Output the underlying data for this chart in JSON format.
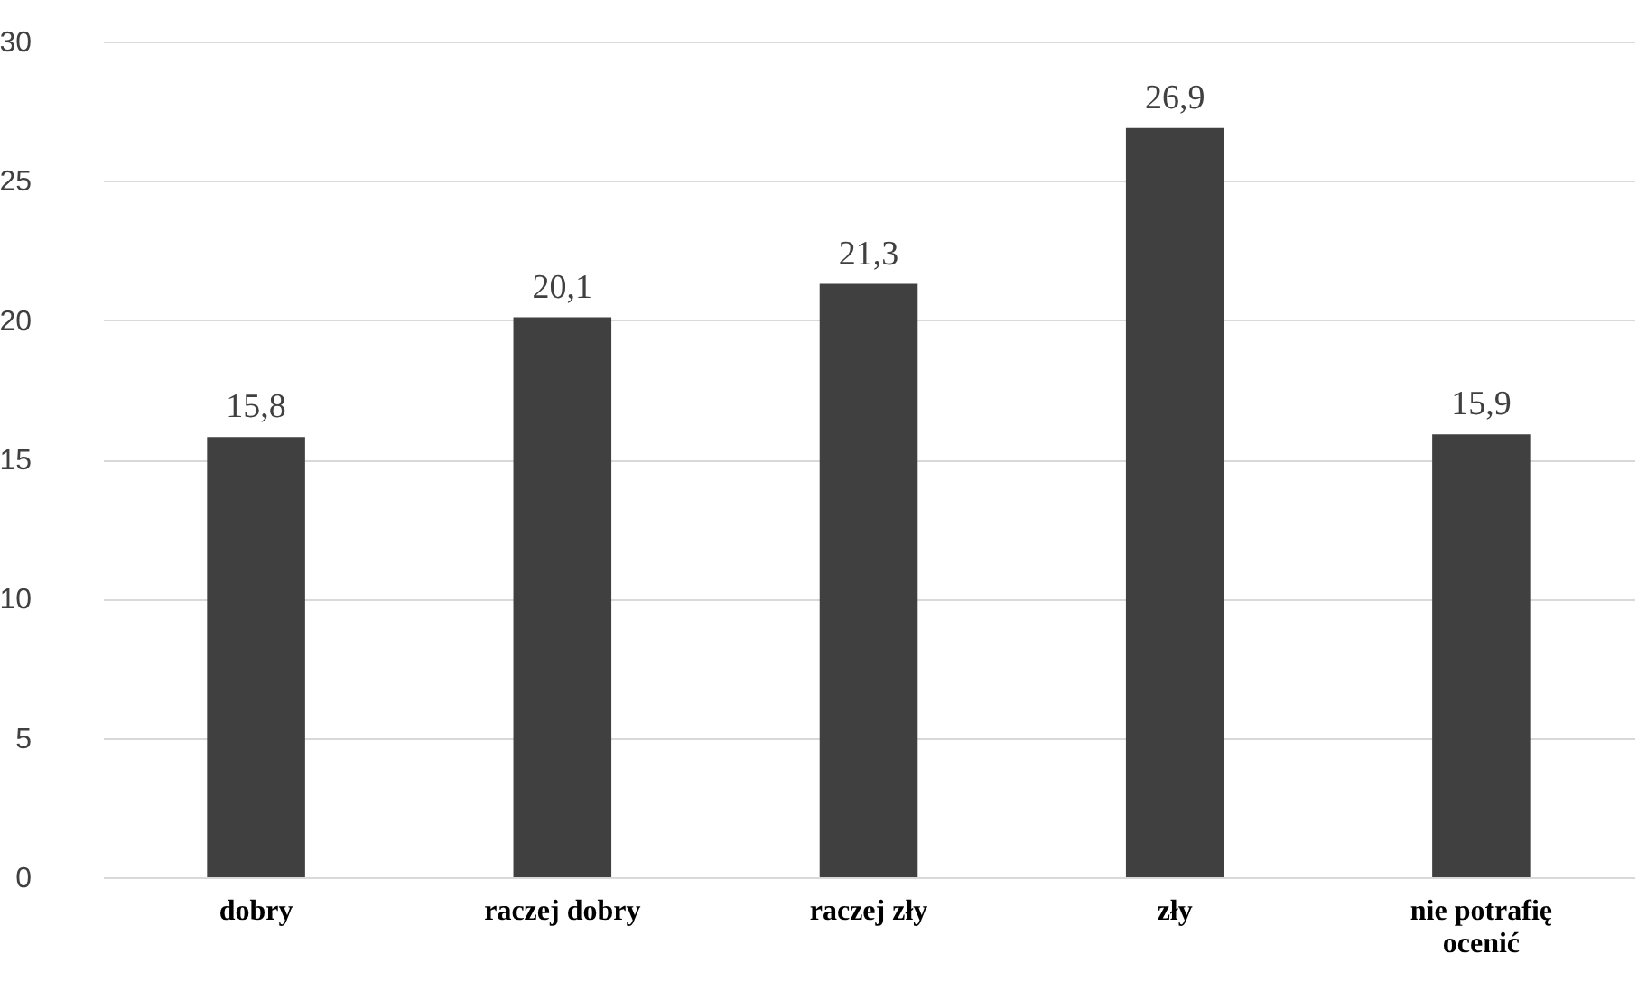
{
  "chart_data": {
    "type": "bar",
    "categories": [
      "dobry",
      "raczej dobry",
      "raczej zły",
      "zły",
      "nie potrafię ocenić"
    ],
    "values": [
      15.8,
      20.1,
      21.3,
      26.9,
      15.9
    ],
    "value_labels": [
      "15,8",
      "20,1",
      "21,3",
      "26,9",
      "15,9"
    ],
    "color": "#404040",
    "ylim": [
      0,
      30
    ],
    "yticks": [
      0,
      5,
      10,
      15,
      20,
      25,
      30
    ],
    "grid": "y"
  }
}
